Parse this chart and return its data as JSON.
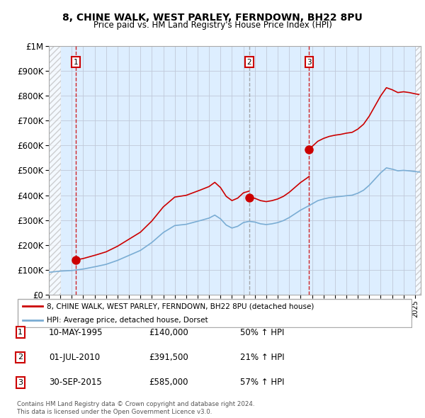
{
  "title1": "8, CHINE WALK, WEST PARLEY, FERNDOWN, BH22 8PU",
  "title2": "Price paid vs. HM Land Registry's House Price Index (HPI)",
  "ylim": [
    0,
    1000000
  ],
  "xlim_start": 1993.0,
  "xlim_end": 2025.5,
  "yticks": [
    0,
    100000,
    200000,
    300000,
    400000,
    500000,
    600000,
    700000,
    800000,
    900000,
    1000000
  ],
  "ytick_labels": [
    "£0",
    "£100K",
    "£200K",
    "£300K",
    "£400K",
    "£500K",
    "£600K",
    "£700K",
    "£800K",
    "£900K",
    "£1M"
  ],
  "sale_dates": [
    1995.36,
    2010.5,
    2015.75
  ],
  "sale_prices": [
    140000,
    391500,
    585000
  ],
  "sale_labels": [
    "1",
    "2",
    "3"
  ],
  "legend_line1": "8, CHINE WALK, WEST PARLEY, FERNDOWN, BH22 8PU (detached house)",
  "legend_line2": "HPI: Average price, detached house, Dorset",
  "table_rows": [
    [
      "1",
      "10-MAY-1995",
      "£140,000",
      "50% ↑ HPI"
    ],
    [
      "2",
      "01-JUL-2010",
      "£391,500",
      "21% ↑ HPI"
    ],
    [
      "3",
      "30-SEP-2015",
      "£585,000",
      "57% ↑ HPI"
    ]
  ],
  "footnote1": "Contains HM Land Registry data © Crown copyright and database right 2024.",
  "footnote2": "This data is licensed under the Open Government Licence v3.0.",
  "red_color": "#cc0000",
  "blue_color": "#7aadd4",
  "chart_bg": "#ddeeff",
  "hatch_color": "#c8c8c8",
  "grid_color": "#c0c8d8",
  "vline1_color": "#cc0000",
  "vline2_color": "#999999",
  "vline3_color": "#cc0000"
}
